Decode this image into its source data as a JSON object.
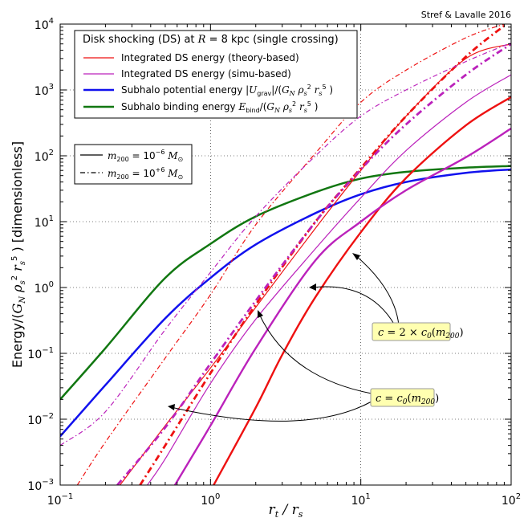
{
  "chart_data": {
    "type": "line",
    "credit": "Stref & Lavalle 2016",
    "xlabel": "r_t / r_s",
    "ylabel": "Energy/(G_N ρ_s² r_s⁵) [dimensionless]",
    "x_scale": "log",
    "y_scale": "log",
    "xlim": [
      0.1,
      100
    ],
    "ylim": [
      0.001,
      10000
    ],
    "grid": true,
    "x_ticks": [
      {
        "base": "10",
        "exp": "−1"
      },
      {
        "base": "10",
        "exp": "0"
      },
      {
        "base": "10",
        "exp": "1"
      },
      {
        "base": "10",
        "exp": "2"
      }
    ],
    "y_ticks": [
      {
        "base": "10",
        "exp": "−3"
      },
      {
        "base": "10",
        "exp": "−2"
      },
      {
        "base": "10",
        "exp": "−1"
      },
      {
        "base": "10",
        "exp": "0"
      },
      {
        "base": "10",
        "exp": "1"
      },
      {
        "base": "10",
        "exp": "2"
      },
      {
        "base": "10",
        "exp": "3"
      },
      {
        "base": "10",
        "exp": "4"
      }
    ],
    "legend_main": {
      "title": "Disk shocking (DS) at R = 8 kpc (single crossing)",
      "placement": "top-left",
      "entries": [
        {
          "label": "Integrated DS energy (theory-based)",
          "color": "#ee1111"
        },
        {
          "label": "Integrated DS energy (simu-based)",
          "color": "#bb22bb"
        },
        {
          "label": "Subhalo potential energy |U_grav|/(G_N ρ_s² r_s⁵)",
          "color": "#1111ee"
        },
        {
          "label": "Subhalo binding energy E_bind/(G_N ρ_s² r_s⁵)",
          "color": "#117711"
        }
      ]
    },
    "legend_mass": {
      "placement": "upper-left",
      "entries": [
        {
          "label": "m_200 = 10^−6 M_⊙",
          "style": "solid"
        },
        {
          "label": "m_200 = 10^+6 M_⊙",
          "style": "dash-dot"
        }
      ]
    },
    "annotations": [
      {
        "text": "c = 2 × c_0(m_200)"
      },
      {
        "text": "c = c_0(m_200)"
      }
    ],
    "series": [
      {
        "id": "binding",
        "color": "#117711",
        "style": "solid",
        "width": 2.5,
        "x": [
          0.1,
          0.2,
          0.5,
          1,
          2,
          5,
          10,
          20,
          50,
          100
        ],
        "y": [
          0.02,
          0.12,
          1.4,
          4.6,
          12,
          28,
          45,
          57,
          66,
          70
        ]
      },
      {
        "id": "potential",
        "color": "#1111ee",
        "style": "solid",
        "width": 2.5,
        "x": [
          0.1,
          0.2,
          0.5,
          1,
          2,
          5,
          10,
          20,
          50,
          100
        ],
        "y": [
          0.0055,
          0.033,
          0.34,
          1.4,
          4.5,
          13.5,
          26,
          40,
          55,
          62
        ]
      },
      {
        "id": "theory_c2_lo",
        "color": "#ee1111",
        "style": "solid",
        "width": 1.2,
        "x": [
          0.25,
          0.5,
          1,
          2,
          5,
          10,
          20,
          50,
          100
        ],
        "y": [
          0.001,
          0.008,
          0.06,
          0.5,
          8,
          60,
          400,
          3000,
          5000
        ]
      },
      {
        "id": "theory_c1_lo",
        "color": "#ee1111",
        "style": "solid",
        "width": 2.4,
        "x": [
          1.05,
          2,
          3,
          5,
          10,
          20,
          50,
          100
        ],
        "y": [
          0.001,
          0.015,
          0.095,
          0.72,
          6.9,
          46,
          290,
          780
        ]
      },
      {
        "id": "simu_c2_lo",
        "color": "#bb22bb",
        "style": "solid",
        "width": 1.2,
        "x": [
          0.38,
          0.5,
          1,
          2,
          5,
          10,
          20,
          50,
          100
        ],
        "y": [
          0.001,
          0.0025,
          0.035,
          0.33,
          3.9,
          23,
          120,
          650,
          1700
        ]
      },
      {
        "id": "simu_c1_lo",
        "color": "#bb22bb",
        "style": "solid",
        "width": 2.4,
        "x": [
          0.58,
          1,
          2,
          5,
          10,
          20,
          50,
          100
        ],
        "y": [
          0.001,
          0.008,
          0.12,
          2.6,
          10,
          30,
          95,
          260
        ]
      },
      {
        "id": "theory_c2_hi",
        "color": "#ee1111",
        "style": "dashdot",
        "width": 1.2,
        "x": [
          0.13,
          0.2,
          0.5,
          1,
          2,
          5,
          10,
          20,
          50,
          90
        ],
        "y": [
          0.001,
          0.0045,
          0.085,
          0.78,
          9,
          110,
          650,
          2000,
          6200,
          10000
        ]
      },
      {
        "id": "theory_c1_hi",
        "color": "#ee1111",
        "style": "dashdot",
        "width": 2.8,
        "x": [
          0.34,
          0.5,
          1,
          2,
          5,
          10,
          20,
          50,
          93
        ],
        "y": [
          0.001,
          0.004,
          0.05,
          0.55,
          10,
          65,
          400,
          3200,
          10000
        ]
      },
      {
        "id": "simu_c2_hi",
        "color": "#bb22bb",
        "style": "dashdot",
        "width": 1.2,
        "x": [
          0.1,
          0.2,
          0.5,
          1,
          2,
          5,
          10,
          20,
          50,
          100
        ],
        "y": [
          0.004,
          0.013,
          0.23,
          1.7,
          12,
          100,
          400,
          1000,
          2700,
          5200
        ]
      },
      {
        "id": "simu_c1_hi",
        "color": "#bb22bb",
        "style": "dashdot",
        "width": 2.8,
        "x": [
          0.24,
          0.5,
          1,
          2,
          5,
          10,
          20,
          50,
          100
        ],
        "y": [
          0.001,
          0.0075,
          0.07,
          0.63,
          10,
          62,
          300,
          1700,
          5000
        ]
      }
    ]
  }
}
